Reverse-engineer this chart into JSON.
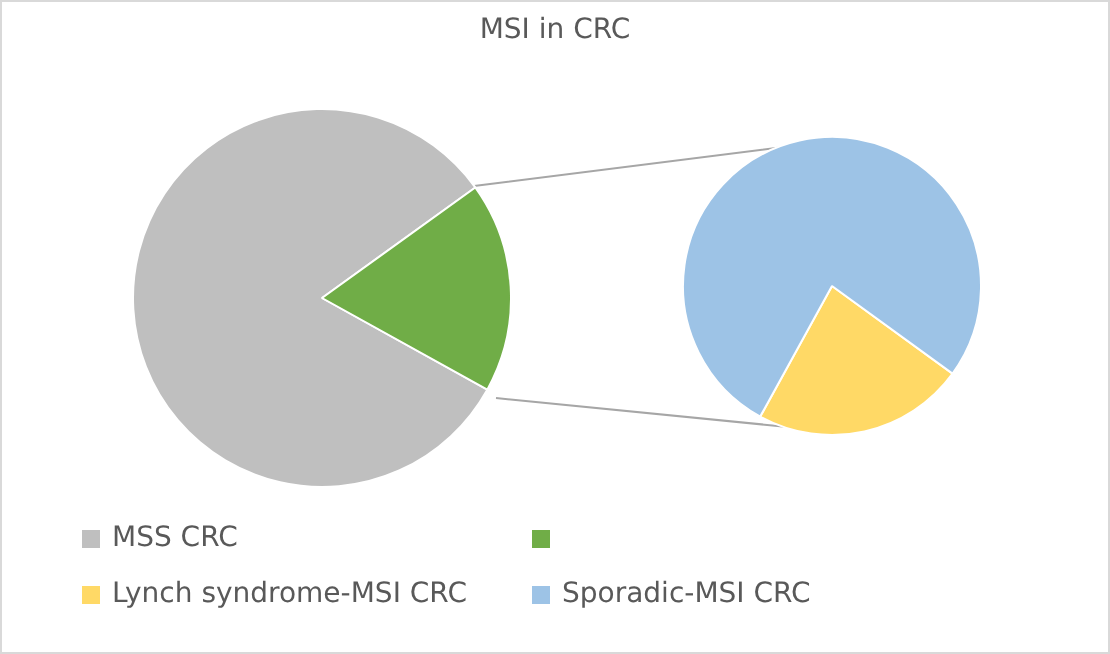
{
  "chart_data": [
    {
      "type": "pie",
      "title": "MSI in CRC",
      "categories": [
        "MSS CRC",
        null
      ],
      "values": [
        82,
        18
      ],
      "colors": [
        "#bfbfbf",
        "#70ad47"
      ],
      "legend": "bottom"
    },
    {
      "type": "pie",
      "categories": [
        "Lynch syndrome-MSI CRC",
        "Sporadic-MSI CRC"
      ],
      "values": [
        23,
        77
      ],
      "colors": [
        "#ffd966",
        "#9dc3e6"
      ],
      "legend": "bottom"
    }
  ]
}
